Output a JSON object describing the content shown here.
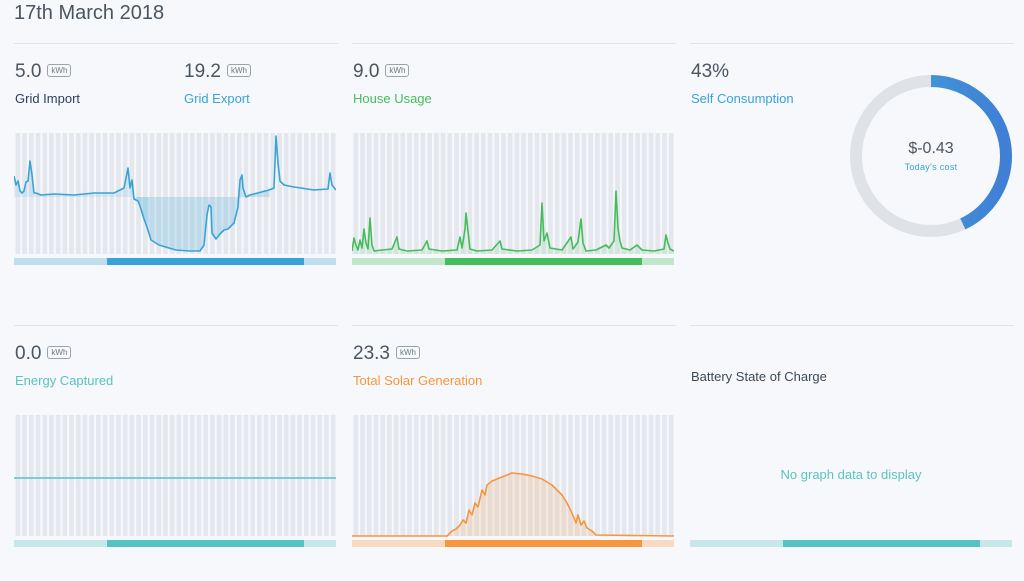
{
  "date": "17th March 2018",
  "colors": {
    "grid": "#3aa3d6",
    "house": "#45bd5b",
    "captured": "#56c3c2",
    "solar": "#f7963c",
    "navy": "#2b3f63",
    "muted": "#dfe3e8"
  },
  "panels": {
    "grid": {
      "import_value": "5.0",
      "import_unit": "kWh",
      "import_label": "Grid Import",
      "export_value": "19.2",
      "export_unit": "kWh",
      "export_label": "Grid Export"
    },
    "house": {
      "value": "9.0",
      "unit": "kWh",
      "label": "House Usage"
    },
    "self": {
      "value": "43%",
      "label": "Self Consumption",
      "percent": 43,
      "cost": "$-0.43",
      "cost_label": "Today's cost"
    },
    "captured": {
      "value": "0.0",
      "unit": "kWh",
      "label": "Energy Captured"
    },
    "solar": {
      "value": "23.3",
      "unit": "kWh",
      "label": "Total Solar Generation"
    },
    "battery": {
      "label": "Battery State of Charge",
      "no_data": "No graph data to display"
    }
  }
}
